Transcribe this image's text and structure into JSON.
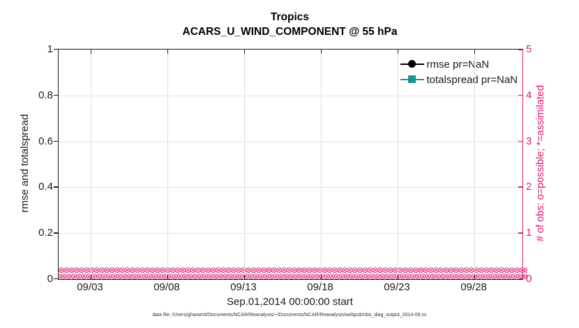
{
  "title": {
    "line1": "Tropics",
    "line2": "ACARS_U_WIND_COMPONENT @ 55 hPa"
  },
  "axes": {
    "left": {
      "label": "rmse and totalspread",
      "ticks": [
        "0",
        "0.2",
        "0.4",
        "0.6",
        "0.8",
        "1"
      ],
      "range": [
        0,
        1
      ],
      "color": "#1a1a1a"
    },
    "right": {
      "label": "# of obs: o=possible; *=assimilated",
      "ticks": [
        "0",
        "1",
        "2",
        "3",
        "4",
        "5"
      ],
      "range": [
        0,
        5
      ],
      "color": "#d91a6c"
    },
    "x": {
      "label": "Sep.01,2014 00:00:00 start",
      "ticks": [
        "09/03",
        "09/08",
        "09/13",
        "09/18",
        "09/23",
        "09/28"
      ]
    }
  },
  "legend": [
    {
      "label": "rmse pr=NaN",
      "color": "#000000",
      "marker": "circle"
    },
    {
      "label": "totalspread pr=NaN",
      "color": "#1a968c",
      "marker": "square"
    }
  ],
  "caption": "data file: /Users/gharamti/Documents/NCAR/Reanalysis/~/Documents/NCAR/Reanalysis/webpub/obs_diag_output_2014-09.nc",
  "colors": {
    "accent_pink": "#d91a6c",
    "teal": "#1a968c",
    "black": "#000000"
  },
  "chart_data": {
    "type": "line",
    "title": "Tropics",
    "subtitle": "ACARS_U_WIND_COMPONENT @ 55 hPa",
    "xlabel": "Sep.01,2014 00:00:00 start",
    "x_tick_labels": [
      "09/03",
      "09/08",
      "09/13",
      "09/18",
      "09/23",
      "09/28"
    ],
    "left_axis": {
      "ylabel": "rmse and totalspread",
      "ylim": [
        0,
        1
      ]
    },
    "right_axis": {
      "ylabel": "# of obs: o=possible; *=assimilated",
      "ylim": [
        0,
        5
      ]
    },
    "grid": true,
    "legend_position": "top-right-inside",
    "n_time_bins": 120,
    "series": [
      {
        "name": "rmse pr=NaN",
        "axis": "left",
        "marker": "filled-circle",
        "color": "#000000",
        "values": "NaN (no curve plotted)"
      },
      {
        "name": "totalspread pr=NaN",
        "axis": "left",
        "marker": "filled-square",
        "color": "#1a968c",
        "values": "NaN (no curve plotted)"
      },
      {
        "name": "possible obs (o)",
        "axis": "right",
        "marker": "o",
        "color": "#d91a6c",
        "value_constant": 0,
        "n_points": 120
      },
      {
        "name": "assimilated obs (*)",
        "axis": "right",
        "marker": "*",
        "color": "#d91a6c",
        "value_constant": 0,
        "n_points": 120
      }
    ]
  }
}
